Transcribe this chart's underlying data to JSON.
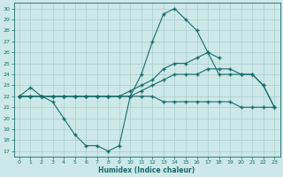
{
  "bg_color": "#cce8e8",
  "grid_color": "#aacccc",
  "line_color": "#1a6b6b",
  "xlabel": "Humidex (Indice chaleur)",
  "xlim": [
    -0.5,
    23.5
  ],
  "ylim": [
    16.5,
    30.5
  ],
  "yticks": [
    17,
    18,
    19,
    20,
    21,
    22,
    23,
    24,
    25,
    26,
    27,
    28,
    29,
    30
  ],
  "xticks": [
    0,
    1,
    2,
    3,
    4,
    5,
    6,
    7,
    8,
    9,
    10,
    11,
    12,
    13,
    14,
    15,
    16,
    17,
    18,
    19,
    20,
    21,
    22,
    23
  ],
  "line1_x": [
    0,
    1,
    2,
    3,
    4,
    5,
    6,
    7,
    8,
    9,
    10,
    11,
    12,
    13,
    14,
    15,
    16,
    17,
    18
  ],
  "line1_y": [
    22,
    22.8,
    22,
    21.5,
    20,
    18.5,
    17.5,
    17.5,
    17,
    17.5,
    22,
    24,
    27,
    29.5,
    30,
    29,
    28,
    26,
    25.5
  ],
  "line2_x": [
    0,
    1,
    2,
    3,
    4,
    5,
    6,
    7,
    8,
    9,
    10,
    11,
    12,
    13,
    14,
    15,
    16,
    17,
    18,
    19,
    20,
    21,
    22,
    23
  ],
  "line2_y": [
    22,
    22,
    22,
    22,
    22,
    22,
    22,
    22,
    22,
    22,
    22.5,
    23,
    23.5,
    24.5,
    25,
    25,
    25.5,
    26,
    24,
    24,
    24,
    24,
    23,
    21
  ],
  "line3_x": [
    0,
    1,
    2,
    3,
    4,
    5,
    6,
    7,
    8,
    9,
    10,
    11,
    12,
    13,
    14,
    15,
    16,
    17,
    18,
    19,
    20,
    21,
    22,
    23
  ],
  "line3_y": [
    22,
    22,
    22,
    22,
    22,
    22,
    22,
    22,
    22,
    22,
    22,
    22.5,
    23,
    23.5,
    24,
    24,
    24,
    24.5,
    24.5,
    24.5,
    24,
    24,
    23,
    21
  ],
  "line4_x": [
    0,
    1,
    2,
    3,
    4,
    5,
    6,
    7,
    8,
    9,
    10,
    11,
    12,
    13,
    14,
    15,
    16,
    17,
    18,
    19,
    20,
    21,
    22,
    23
  ],
  "line4_y": [
    22,
    22,
    22,
    22,
    22,
    22,
    22,
    22,
    22,
    22,
    22,
    22,
    22,
    21.5,
    21.5,
    21.5,
    21.5,
    21.5,
    21.5,
    21.5,
    21,
    21,
    21,
    21
  ]
}
